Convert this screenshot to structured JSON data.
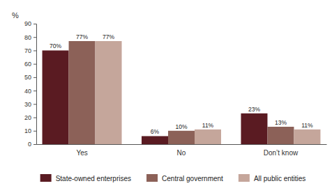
{
  "chart_data": {
    "type": "bar",
    "y_label": "%",
    "categories": [
      "Yes",
      "No",
      "Don’t know"
    ],
    "series": [
      {
        "name": "State-owned enterprises",
        "color": "#5a1b22",
        "values": [
          70,
          6,
          23
        ],
        "value_labels": [
          "70%",
          "6%",
          "23%"
        ]
      },
      {
        "name": "Central government",
        "color": "#8c6158",
        "values": [
          77,
          10,
          13
        ],
        "value_labels": [
          "77%",
          "10%",
          "13%"
        ]
      },
      {
        "name": "All public entities",
        "color": "#c5a69b",
        "values": [
          77,
          11,
          11
        ],
        "value_labels": [
          "77%",
          "11%",
          "11%"
        ]
      }
    ],
    "ylim": [
      0,
      90
    ],
    "yticks": [
      0,
      10,
      20,
      30,
      40,
      50,
      60,
      70,
      80,
      90
    ],
    "grid": false,
    "legend": "bottom",
    "data_labels": true
  }
}
